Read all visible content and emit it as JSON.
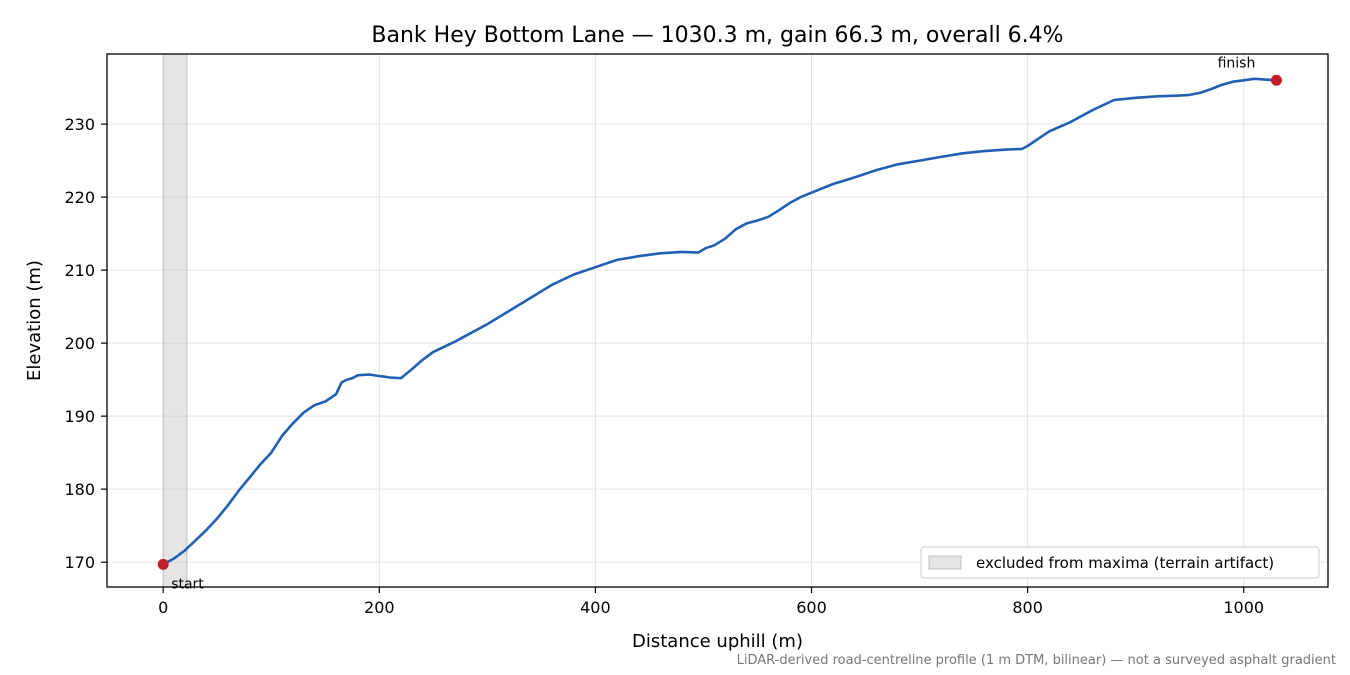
{
  "chart_data": {
    "type": "line",
    "title": "Bank Hey Bottom Lane — 1030.3 m, gain 66.3 m, overall 6.4%",
    "xlabel": "Distance uphill (m)",
    "ylabel": "Elevation (m)",
    "xlim": [
      -52,
      1078
    ],
    "ylim": [
      166.6,
      239.6
    ],
    "xticks": [
      0,
      200,
      400,
      600,
      800,
      1000
    ],
    "yticks": [
      170,
      180,
      190,
      200,
      210,
      220,
      230
    ],
    "grid": true,
    "legend_position": "lower-right",
    "line_color": "#1f5fb4",
    "marker_color": "#c0202d",
    "band_color": "#cfcfcf",
    "series": [
      {
        "x": [
          0,
          10,
          20,
          30,
          40,
          50,
          60,
          70,
          80,
          90,
          100,
          110,
          120,
          130,
          140,
          150,
          160,
          165,
          170,
          175,
          180,
          190,
          200,
          210,
          220,
          230,
          240,
          250,
          260,
          270,
          280,
          290,
          300,
          320,
          340,
          360,
          380,
          400,
          420,
          440,
          460,
          480,
          495,
          502,
          510,
          520,
          530,
          540,
          550,
          560,
          570,
          580,
          590,
          600,
          620,
          640,
          660,
          680,
          700,
          720,
          740,
          760,
          780,
          795,
          800,
          810,
          820,
          840,
          860,
          880,
          900,
          920,
          940,
          950,
          960,
          970,
          980,
          990,
          1000,
          1010,
          1020,
          1030.3
        ],
        "y": [
          169.7,
          170.5,
          171.6,
          173.0,
          174.4,
          176.0,
          177.8,
          179.8,
          181.6,
          183.4,
          185.0,
          187.3,
          189.0,
          190.5,
          191.5,
          192.0,
          193.0,
          194.6,
          195.0,
          195.2,
          195.6,
          195.7,
          195.5,
          195.3,
          195.2,
          196.4,
          197.7,
          198.8,
          199.5,
          200.2,
          201.0,
          201.8,
          202.6,
          204.4,
          206.2,
          208.0,
          209.4,
          210.4,
          211.4,
          211.9,
          212.3,
          212.5,
          212.4,
          213.0,
          213.4,
          214.3,
          215.6,
          216.4,
          216.8,
          217.3,
          218.2,
          219.2,
          220.0,
          220.6,
          221.8,
          222.7,
          223.7,
          224.5,
          225.0,
          225.5,
          226.0,
          226.3,
          226.5,
          226.6,
          227.0,
          228.0,
          229.0,
          230.3,
          231.9,
          233.3,
          233.6,
          233.8,
          233.9,
          234.0,
          234.3,
          234.8,
          235.4,
          235.8,
          236.0,
          236.2,
          236.1,
          236.0
        ]
      }
    ],
    "excluded_band": [
      0,
      22
    ],
    "annotations": [
      {
        "text": "start",
        "x": 0,
        "y": 169.7
      },
      {
        "text": "finish",
        "x": 1030.3,
        "y": 236.0
      }
    ],
    "legend": [
      {
        "label": "excluded from maxima (terrain artifact)"
      }
    ],
    "caption": "LiDAR-derived road-centreline profile (1 m DTM, bilinear) — not a surveyed asphalt gradient"
  }
}
